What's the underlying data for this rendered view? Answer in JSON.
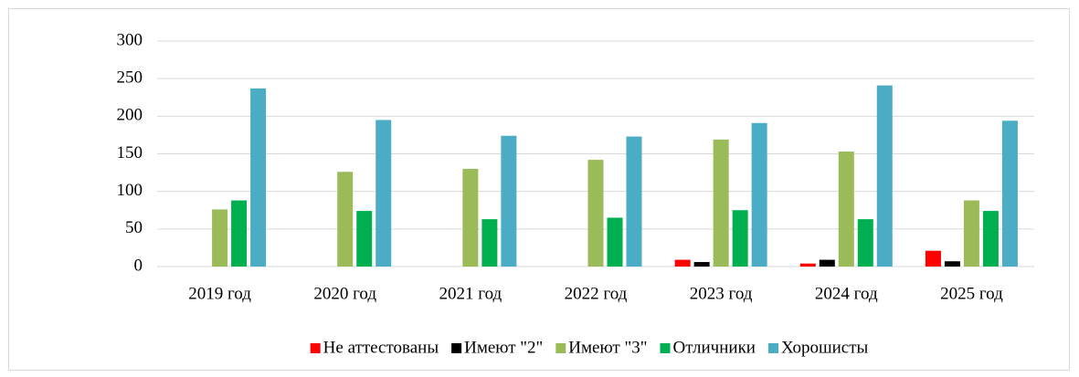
{
  "chart_data": {
    "type": "bar",
    "categories": [
      "2019 год",
      "2020 год",
      "2021 год",
      "2022 год",
      "2023 год",
      "2024 год",
      "2025 год"
    ],
    "series": [
      {
        "name": "Не аттестованы",
        "color": "#ff0000",
        "values": [
          0,
          0,
          0,
          0,
          9,
          4,
          21
        ]
      },
      {
        "name": "Имеют \"2\"",
        "color": "#000000",
        "values": [
          0,
          0,
          0,
          0,
          6,
          9,
          7
        ]
      },
      {
        "name": "Имеют \"3\"",
        "color": "#9bbb59",
        "values": [
          76,
          126,
          130,
          142,
          169,
          153,
          88
        ]
      },
      {
        "name": "Отличники",
        "color": "#00b050",
        "values": [
          88,
          74,
          63,
          65,
          75,
          63,
          74
        ]
      },
      {
        "name": "Хорошисты",
        "color": "#4bacc6",
        "values": [
          237,
          195,
          174,
          173,
          191,
          241,
          194
        ]
      }
    ],
    "ylim": [
      0,
      300
    ],
    "yticks": [
      0,
      50,
      100,
      150,
      200,
      250,
      300
    ],
    "grid": true,
    "legend": "bottom"
  }
}
